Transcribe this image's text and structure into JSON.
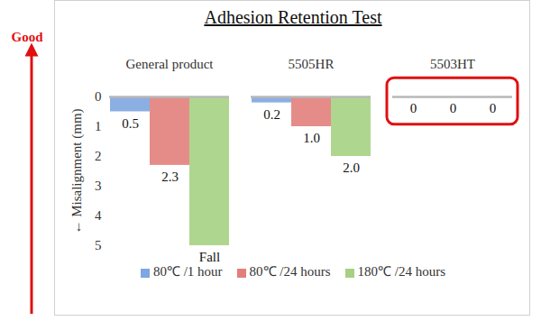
{
  "chart_data": {
    "type": "bar",
    "title": "Adhesion Retention Test",
    "ylabel": "Misalignment (mm)",
    "categories": [
      "General product",
      "5505HR",
      "5503HT"
    ],
    "series": [
      {
        "name": "80℃ /1 hour",
        "color": "#7ea6e0",
        "values": [
          0.5,
          0.2,
          0
        ],
        "value_labels": [
          "0.5",
          "0.2",
          "0"
        ]
      },
      {
        "name": "80℃ /24 hours",
        "color": "#e27f7c",
        "values": [
          2.3,
          1.0,
          0
        ],
        "value_labels": [
          "2.3",
          "1.0",
          "0"
        ]
      },
      {
        "name": "180℃ /24 hours",
        "color": "#a6d183",
        "values": [
          5,
          2.0,
          0
        ],
        "value_labels": [
          "Fall",
          "2.0",
          "0"
        ]
      }
    ],
    "ylim": [
      0,
      5
    ],
    "yticks": [
      0,
      1,
      2,
      3,
      4,
      5
    ],
    "grid": false,
    "legend": "bottom",
    "data_labels": true,
    "annotations": [
      "Good"
    ]
  }
}
